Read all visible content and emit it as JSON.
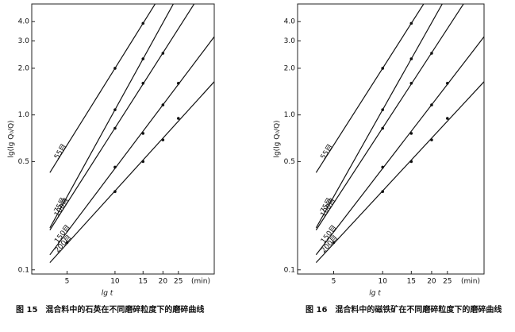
{
  "chart_data": [
    {
      "type": "line",
      "log_x": true,
      "log_y": true,
      "y_label": "lg(lg Q₀/Q)",
      "x_label": "lg t",
      "x_unit_label": "(min)",
      "caption": "图 15　混合料中的石英在不同磨碎粒度下的磨碎曲线",
      "xlim": [
        3,
        42
      ],
      "ylim": [
        0.094,
        5.2
      ],
      "xticks": [
        5,
        10,
        15,
        20,
        25
      ],
      "yticks": [
        0.1,
        0.5,
        {
          "value": 1,
          "label": "1.0"
        },
        {
          "value": 2,
          "label": "2.0"
        },
        {
          "value": 3,
          "label": "3.0"
        },
        {
          "value": 4,
          "label": "4.0"
        }
      ],
      "series": [
        {
          "name": "55目",
          "color": "#111111",
          "x": [
            10,
            15
          ],
          "values": [
            2.0,
            3.9
          ]
        },
        {
          "name": "75目",
          "color": "#111111",
          "x": [
            10,
            15
          ],
          "values": [
            1.08,
            2.3
          ]
        },
        {
          "name": "100目",
          "color": "#111111",
          "x": [
            10,
            15,
            20
          ],
          "values": [
            0.82,
            1.6,
            2.5
          ]
        },
        {
          "name": "150目",
          "color": "#111111",
          "x": [
            10,
            15,
            20,
            25
          ],
          "values": [
            0.46,
            0.76,
            1.16,
            1.6
          ]
        },
        {
          "name": "200目",
          "color": "#111111",
          "x": [
            5,
            10,
            15,
            20,
            25
          ],
          "values": [
            0.15,
            0.32,
            0.5,
            0.69,
            0.95
          ]
        }
      ]
    },
    {
      "type": "line",
      "log_x": true,
      "log_y": true,
      "y_label": "lg(lg Q₀/Q)",
      "x_label": "lg t",
      "x_unit_label": "(min)",
      "caption": "图 16　混合料中的磁铁矿在不同磨碎粒度下的磨碎曲线",
      "xlim": [
        3,
        42
      ],
      "ylim": [
        0.094,
        5.2
      ],
      "xticks": [
        5,
        10,
        15,
        20,
        25
      ],
      "yticks": [
        0.1,
        0.5,
        {
          "value": 1,
          "label": "1.0"
        },
        {
          "value": 2,
          "label": "2.0"
        },
        {
          "value": 3,
          "label": "3.0"
        },
        {
          "value": 4,
          "label": "4.0"
        }
      ],
      "series": [
        {
          "name": "55目",
          "color": "#111111",
          "x": [
            10,
            15
          ],
          "values": [
            2.0,
            3.9
          ]
        },
        {
          "name": "75目",
          "color": "#111111",
          "x": [
            10,
            15
          ],
          "values": [
            1.08,
            2.3
          ]
        },
        {
          "name": "100目",
          "color": "#111111",
          "x": [
            10,
            15,
            20
          ],
          "values": [
            0.82,
            1.6,
            2.5
          ]
        },
        {
          "name": "150目",
          "color": "#111111",
          "x": [
            10,
            15,
            20,
            25
          ],
          "values": [
            0.46,
            0.76,
            1.16,
            1.6
          ]
        },
        {
          "name": "200目",
          "color": "#111111",
          "x": [
            5,
            10,
            15,
            20,
            25
          ],
          "values": [
            0.15,
            0.32,
            0.5,
            0.69,
            0.95
          ]
        }
      ]
    }
  ]
}
